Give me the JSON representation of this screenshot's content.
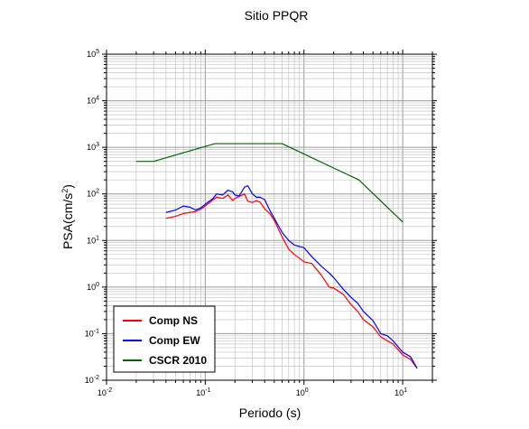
{
  "chart_data": {
    "type": "line",
    "title": "Sitio PPQR",
    "xlabel": "Periodo (s)",
    "ylabel_main": "PSA(cm/s",
    "ylabel_sup": "2",
    "ylabel_close": ")",
    "x_scale": "log",
    "y_scale": "log",
    "xlim": [
      0.01,
      20
    ],
    "ylim": [
      0.01,
      100000
    ],
    "x_ticks": [
      {
        "value": 0.01,
        "base": "10",
        "exp": "-2"
      },
      {
        "value": 0.1,
        "base": "10",
        "exp": "-1"
      },
      {
        "value": 1,
        "base": "10",
        "exp": "0"
      },
      {
        "value": 10,
        "base": "10",
        "exp": "1"
      }
    ],
    "y_ticks": [
      {
        "value": 0.01,
        "base": "10",
        "exp": "-2"
      },
      {
        "value": 0.1,
        "base": "10",
        "exp": "-1"
      },
      {
        "value": 1,
        "base": "10",
        "exp": "0"
      },
      {
        "value": 10,
        "base": "10",
        "exp": "1"
      },
      {
        "value": 100,
        "base": "10",
        "exp": "2"
      },
      {
        "value": 1000,
        "base": "10",
        "exp": "3"
      },
      {
        "value": 10000,
        "base": "10",
        "exp": "4"
      },
      {
        "value": 100000,
        "base": "10",
        "exp": "5"
      }
    ],
    "grid": true,
    "legend_position": "bottom-left",
    "series": [
      {
        "name": "Comp NS",
        "color": "#ff0000",
        "x": [
          0.04,
          0.05,
          0.06,
          0.07,
          0.08,
          0.09,
          0.1,
          0.11,
          0.12,
          0.13,
          0.15,
          0.17,
          0.19,
          0.2,
          0.22,
          0.25,
          0.27,
          0.3,
          0.33,
          0.36,
          0.4,
          0.45,
          0.5,
          0.6,
          0.7,
          0.8,
          1.0,
          1.2,
          1.5,
          1.8,
          2.0,
          2.5,
          3.0,
          3.5,
          4.0,
          5.0,
          6.0,
          7.0,
          8.0,
          10.0,
          12.0,
          14.0
        ],
        "y": [
          30,
          33,
          38,
          40,
          42,
          47,
          55,
          65,
          75,
          85,
          80,
          95,
          72,
          80,
          88,
          100,
          70,
          65,
          72,
          66,
          48,
          38,
          27,
          12,
          6.5,
          5.0,
          3.5,
          3.2,
          1.8,
          1.0,
          0.95,
          0.7,
          0.42,
          0.3,
          0.2,
          0.14,
          0.085,
          0.07,
          0.06,
          0.035,
          0.028,
          0.018
        ]
      },
      {
        "name": "Comp EW",
        "color": "#0000ff",
        "x": [
          0.04,
          0.05,
          0.06,
          0.07,
          0.08,
          0.09,
          0.1,
          0.11,
          0.12,
          0.13,
          0.15,
          0.17,
          0.19,
          0.2,
          0.22,
          0.25,
          0.27,
          0.3,
          0.33,
          0.36,
          0.4,
          0.45,
          0.5,
          0.6,
          0.7,
          0.8,
          1.0,
          1.2,
          1.5,
          1.8,
          2.0,
          2.5,
          3.0,
          3.5,
          4.0,
          5.0,
          6.0,
          7.0,
          8.0,
          10.0,
          12.0,
          14.0
        ],
        "y": [
          40,
          45,
          55,
          52,
          45,
          50,
          60,
          70,
          80,
          100,
          95,
          120,
          110,
          95,
          90,
          140,
          150,
          100,
          85,
          85,
          75,
          45,
          30,
          15,
          10,
          8.0,
          7.0,
          4.5,
          2.8,
          2.0,
          1.6,
          0.9,
          0.6,
          0.45,
          0.3,
          0.19,
          0.1,
          0.09,
          0.07,
          0.04,
          0.032,
          0.018
        ]
      },
      {
        "name": "CSCR 2010",
        "color": "#006400",
        "x": [
          0.02,
          0.03,
          0.125,
          0.6,
          3.6,
          10.0
        ],
        "y": [
          500,
          500,
          1200,
          1200,
          200,
          25
        ]
      }
    ]
  }
}
